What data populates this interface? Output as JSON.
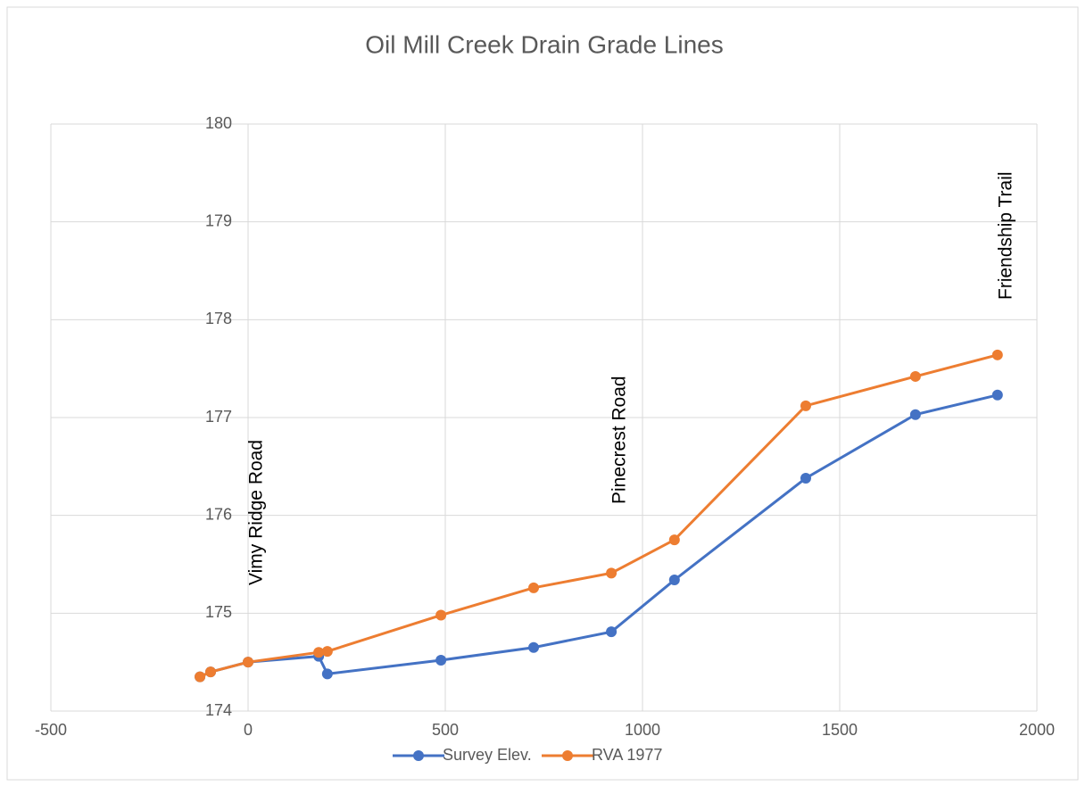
{
  "chart_data": {
    "type": "line",
    "title": "Oil Mill Creek Drain Grade Lines",
    "series": [
      {
        "name": "Survey Elev.",
        "color": "#4472c4",
        "x": [
          -122,
          -95,
          0,
          179,
          201,
          489,
          724,
          921,
          1081,
          1414,
          1692,
          1900
        ],
        "values": [
          174.35,
          174.4,
          174.5,
          174.56,
          174.38,
          174.52,
          174.65,
          174.81,
          175.34,
          176.38,
          177.03,
          177.23
        ]
      },
      {
        "name": "RVA 1977",
        "color": "#ed7d31",
        "x": [
          -122,
          -95,
          0,
          179,
          201,
          489,
          724,
          921,
          1081,
          1414,
          1692,
          1900
        ],
        "values": [
          174.35,
          174.4,
          174.5,
          174.6,
          174.61,
          174.98,
          175.26,
          175.41,
          175.75,
          177.12,
          177.42,
          177.64
        ]
      }
    ],
    "annotations": [
      {
        "text": "Vimy Ridge Road",
        "x": 0
      },
      {
        "text": "Pinecrest Road",
        "x": 921
      },
      {
        "text": "Friendship Trail",
        "x": 1900
      }
    ],
    "xlim": [
      -500,
      2000
    ],
    "xticks": [
      -500,
      0,
      500,
      1000,
      1500,
      2000
    ],
    "ylim": [
      174,
      180
    ],
    "yticks": [
      174,
      175,
      176,
      177,
      178,
      179,
      180
    ],
    "grid": true,
    "legend": "bottom"
  }
}
